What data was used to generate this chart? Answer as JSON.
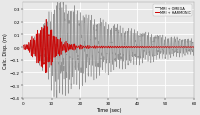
{
  "title": "",
  "xlabel": "Time (sec)",
  "ylabel": "Calc. Disp. (m)",
  "xlim": [
    0,
    60
  ],
  "ylim": [
    -0.4,
    0.35
  ],
  "yticks": [
    -0.4,
    -0.3,
    -0.2,
    -0.1,
    0.0,
    0.1,
    0.2,
    0.3
  ],
  "xticks": [
    0,
    10,
    20,
    30,
    40,
    50,
    60
  ],
  "legend_labels": [
    "MRI + OMEGA",
    "MRI + HARMONIC"
  ],
  "line1_color": "#888888",
  "line2_color": "#cc0000",
  "background_color": "#e8e8e8",
  "grid_color": "#ffffff",
  "figsize": [
    2.0,
    1.16
  ],
  "dpi": 100,
  "sig1_peak_amp": 0.3,
  "sig1_t_peak": 12,
  "sig1_decay": 25,
  "sig1_freq": 2.0,
  "sig2_peak_amp": 0.18,
  "sig2_t_peak": 8,
  "sig2_decay": 4,
  "sig2_freq": 2.0
}
